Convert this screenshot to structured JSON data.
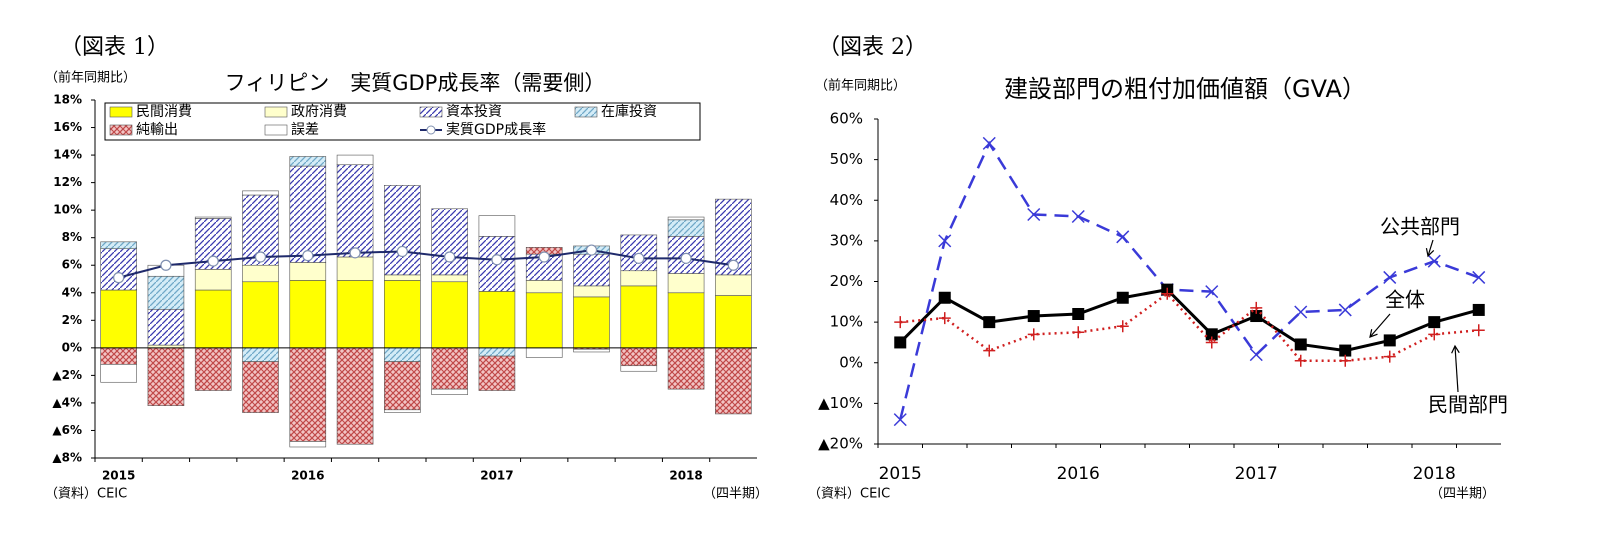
{
  "chart_data": [
    {
      "type": "bar",
      "figure": "（図表 1）",
      "unit_note": "（前年同期比）",
      "title": "フィリピン　実質GDP成長率（需要側）",
      "source": "（資料）CEIC",
      "x_note": "（四半期）",
      "stacked": true,
      "legend": true,
      "categories": [
        "2015",
        null,
        null,
        null,
        "2016",
        null,
        null,
        null,
        "2017",
        null,
        null,
        null,
        "2018",
        null
      ],
      "ylim": [
        -8,
        18
      ],
      "yticks": [
        {
          "value": 18,
          "label": "18%"
        },
        {
          "value": 16,
          "label": "16%"
        },
        {
          "value": 14,
          "label": "14%"
        },
        {
          "value": 12,
          "label": "12%"
        },
        {
          "value": 10,
          "label": "10%"
        },
        {
          "value": 8,
          "label": "8%"
        },
        {
          "value": 6,
          "label": "6%"
        },
        {
          "value": 4,
          "label": "4%"
        },
        {
          "value": 2,
          "label": "2%"
        },
        {
          "value": 0,
          "label": "0%"
        },
        {
          "value": -2,
          "label": "▲2%"
        },
        {
          "value": -4,
          "label": "▲4%"
        },
        {
          "value": -6,
          "label": "▲6%"
        },
        {
          "value": -8,
          "label": "▲8%"
        }
      ],
      "series": [
        {
          "name": "民間消費",
          "color": "#ffff00",
          "values": [
            4.2,
            0,
            4.2,
            4.8,
            4.9,
            4.9,
            4.9,
            4.8,
            4.1,
            4.0,
            3.7,
            4.5,
            4.0,
            3.8
          ]
        },
        {
          "name": "政府消費",
          "color": "#ffffcc",
          "values": [
            0,
            0.2,
            1.5,
            1.2,
            1.3,
            1.7,
            0.4,
            0.5,
            0,
            0.9,
            0.8,
            1.1,
            1.4,
            1.5
          ]
        },
        {
          "name": "資本投資",
          "color": "#ffffff",
          "pattern": "hatch",
          "pattern_color": "#3a3ab0",
          "values": [
            3.0,
            2.6,
            3.7,
            5.1,
            7.0,
            6.7,
            6.5,
            4.8,
            4.0,
            1.9,
            2.3,
            2.6,
            2.7,
            5.5
          ]
        },
        {
          "name": "在庫投資",
          "color": "#d4ecf7",
          "pattern": "hatch",
          "pattern_color": "#6fa8c8",
          "values": [
            0.5,
            2.4,
            0,
            -1.0,
            0.7,
            0,
            -1.0,
            0,
            -0.6,
            0,
            0.6,
            0,
            1.2,
            0
          ]
        },
        {
          "name": "純輸出",
          "color": "#f2c4c4",
          "pattern": "cross",
          "pattern_color": "#c04848",
          "values": [
            -1.2,
            -4.2,
            -3.1,
            -3.7,
            -6.8,
            -7.0,
            -3.5,
            -3.0,
            -2.5,
            0.5,
            -0.1,
            -1.3,
            -3.0,
            -4.8
          ]
        },
        {
          "name": "誤差",
          "color": "#ffffff",
          "values": [
            -1.3,
            0.8,
            0.1,
            0.3,
            -0.4,
            0.7,
            -0.2,
            -0.4,
            1.5,
            -0.7,
            -0.2,
            -0.4,
            0.2,
            0
          ]
        },
        {
          "name": "実質GDP成長率",
          "kind": "line",
          "color": "#1f2a6b",
          "values": [
            5.1,
            6.0,
            6.3,
            6.6,
            6.7,
            6.9,
            7.0,
            6.6,
            6.4,
            6.6,
            7.1,
            6.5,
            6.5,
            6.0
          ]
        }
      ]
    },
    {
      "type": "line",
      "figure": "（図表 2）",
      "unit_note": "（前年同期比）",
      "title": "建設部門の粗付加価値額（GVA）",
      "source": "（資料）CEIC",
      "x_note": "（四半期）",
      "categories": [
        "2015",
        null,
        null,
        null,
        "2016",
        null,
        null,
        null,
        "2017",
        null,
        null,
        null,
        "2018",
        null
      ],
      "ylim": [
        -20,
        60
      ],
      "yticks": [
        {
          "value": 60,
          "label": "60%"
        },
        {
          "value": 50,
          "label": "50%"
        },
        {
          "value": 40,
          "label": "40%"
        },
        {
          "value": 30,
          "label": "30%"
        },
        {
          "value": 20,
          "label": "20%"
        },
        {
          "value": 10,
          "label": "10%"
        },
        {
          "value": 0,
          "label": "0%"
        },
        {
          "value": -10,
          "label": "▲10%"
        },
        {
          "value": -20,
          "label": "▲20%"
        }
      ],
      "series": [
        {
          "name": "公共部門",
          "color": "#3a3ad8",
          "dash": "dashed",
          "marker": "x",
          "values": [
            -14,
            30,
            54,
            36.5,
            36,
            31,
            18,
            17.5,
            2,
            12.5,
            13,
            21,
            25,
            21
          ]
        },
        {
          "name": "全体",
          "color": "#000000",
          "marker": "square",
          "values": [
            5,
            16,
            10,
            11.5,
            12,
            16,
            18,
            7,
            11.5,
            4.5,
            3,
            5.5,
            10,
            13
          ]
        },
        {
          "name": "民間部門",
          "color": "#d02020",
          "dash": "dotted",
          "marker": "plus",
          "values": [
            10,
            11,
            3,
            7,
            7.5,
            9,
            17,
            5,
            13.5,
            0.5,
            0.5,
            1.5,
            7,
            8
          ]
        }
      ]
    }
  ]
}
